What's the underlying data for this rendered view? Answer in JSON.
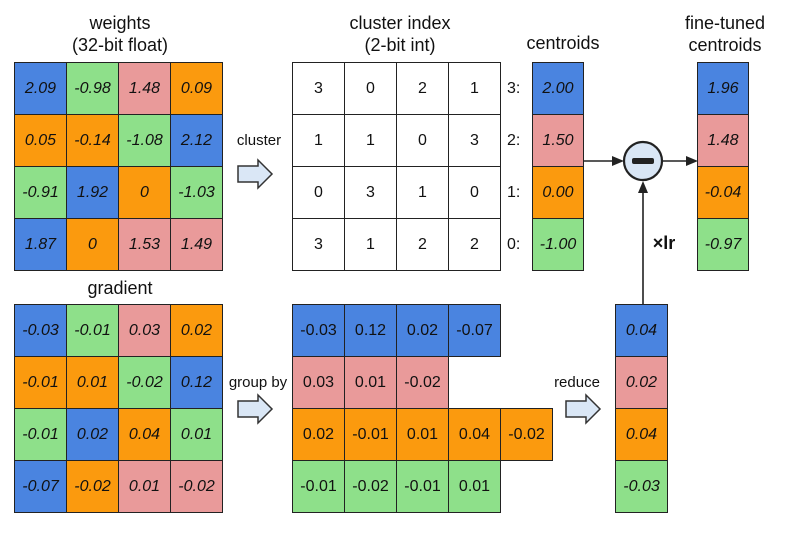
{
  "colors": {
    "blue": "#4a84e0",
    "green": "#8ee08a",
    "pink": "#e99a9a",
    "orange": "#fb9a0e",
    "minus_circle": "#d9e6f5",
    "arrow_fill": "#dae7f6",
    "arrow_stroke": "#333333"
  },
  "weights": {
    "title": "weights",
    "subtitle": "(32-bit float)",
    "cells": [
      [
        {
          "v": "2.09",
          "c": "blue"
        },
        {
          "v": "-0.98",
          "c": "green"
        },
        {
          "v": "1.48",
          "c": "pink"
        },
        {
          "v": "0.09",
          "c": "orange"
        }
      ],
      [
        {
          "v": "0.05",
          "c": "orange"
        },
        {
          "v": "-0.14",
          "c": "orange"
        },
        {
          "v": "-1.08",
          "c": "green"
        },
        {
          "v": "2.12",
          "c": "blue"
        }
      ],
      [
        {
          "v": "-0.91",
          "c": "green"
        },
        {
          "v": "1.92",
          "c": "blue"
        },
        {
          "v": "0",
          "c": "orange"
        },
        {
          "v": "-1.03",
          "c": "green"
        }
      ],
      [
        {
          "v": "1.87",
          "c": "blue"
        },
        {
          "v": "0",
          "c": "orange"
        },
        {
          "v": "1.53",
          "c": "pink"
        },
        {
          "v": "1.49",
          "c": "pink"
        }
      ]
    ]
  },
  "cluster_index": {
    "title": "cluster index",
    "subtitle": "(2-bit int)",
    "cells": [
      [
        "3",
        "0",
        "2",
        "1"
      ],
      [
        "1",
        "1",
        "0",
        "3"
      ],
      [
        "0",
        "3",
        "1",
        "0"
      ],
      [
        "3",
        "1",
        "2",
        "2"
      ]
    ]
  },
  "centroids": {
    "title": "centroids",
    "rows": [
      {
        "label": "3:",
        "v": "2.00",
        "c": "blue"
      },
      {
        "label": "2:",
        "v": "1.50",
        "c": "pink"
      },
      {
        "label": "1:",
        "v": "0.00",
        "c": "orange"
      },
      {
        "label": "0:",
        "v": "-1.00",
        "c": "green"
      }
    ]
  },
  "fine_tuned": {
    "title_line1": "fine-tuned",
    "title_line2": "centroids",
    "cells": [
      {
        "v": "1.96",
        "c": "blue"
      },
      {
        "v": "1.48",
        "c": "pink"
      },
      {
        "v": "-0.04",
        "c": "orange"
      },
      {
        "v": "-0.97",
        "c": "green"
      }
    ]
  },
  "gradient": {
    "title": "gradient",
    "cells": [
      [
        {
          "v": "-0.03",
          "c": "blue"
        },
        {
          "v": "-0.01",
          "c": "green"
        },
        {
          "v": "0.03",
          "c": "pink"
        },
        {
          "v": "0.02",
          "c": "orange"
        }
      ],
      [
        {
          "v": "-0.01",
          "c": "orange"
        },
        {
          "v": "0.01",
          "c": "orange"
        },
        {
          "v": "-0.02",
          "c": "green"
        },
        {
          "v": "0.12",
          "c": "blue"
        }
      ],
      [
        {
          "v": "-0.01",
          "c": "green"
        },
        {
          "v": "0.02",
          "c": "blue"
        },
        {
          "v": "0.04",
          "c": "orange"
        },
        {
          "v": "0.01",
          "c": "green"
        }
      ],
      [
        {
          "v": "-0.07",
          "c": "blue"
        },
        {
          "v": "-0.02",
          "c": "orange"
        },
        {
          "v": "0.01",
          "c": "pink"
        },
        {
          "v": "-0.02",
          "c": "pink"
        }
      ]
    ]
  },
  "grouped": {
    "rows": [
      {
        "c": "blue",
        "values": [
          "-0.03",
          "0.12",
          "0.02",
          "-0.07"
        ]
      },
      {
        "c": "pink",
        "values": [
          "0.03",
          "0.01",
          "-0.02"
        ]
      },
      {
        "c": "orange",
        "values": [
          "0.02",
          "-0.01",
          "0.01",
          "0.04",
          "-0.02"
        ]
      },
      {
        "c": "green",
        "values": [
          "-0.01",
          "-0.02",
          "-0.01",
          "0.01"
        ]
      }
    ]
  },
  "reduced": {
    "cells": [
      {
        "v": "0.04",
        "c": "blue"
      },
      {
        "v": "0.02",
        "c": "pink"
      },
      {
        "v": "0.04",
        "c": "orange"
      },
      {
        "v": "-0.03",
        "c": "green"
      }
    ]
  },
  "labels": {
    "cluster": "cluster",
    "group_by": "group by",
    "reduce": "reduce",
    "lr": "×lr"
  }
}
